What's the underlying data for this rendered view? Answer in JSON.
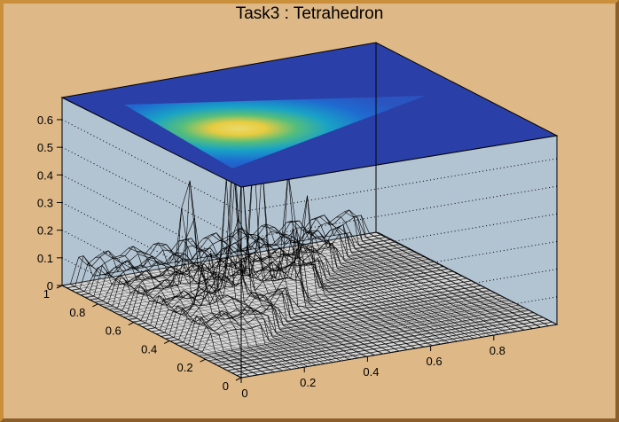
{
  "canvas": {
    "background": "#DEB887",
    "frame_light": "#C98F3A",
    "frame_dark": "#8B5E2A"
  },
  "chart_data": {
    "type": "surface3d",
    "subtype": "lego-mesh (SURF) with color-map projection (COLZ) on top plane",
    "title": "Task3 : Tetrahedron",
    "xlabel": "",
    "ylabel": "",
    "zlabel": "",
    "xlim": [
      0,
      1
    ],
    "ylim": [
      0,
      1
    ],
    "zlim": [
      0,
      0.68
    ],
    "x_ticks": [
      "0",
      "0.2",
      "0.4",
      "0.6",
      "0.8"
    ],
    "y_ticks": [
      "0",
      "0.2",
      "0.4",
      "0.6",
      "0.8",
      "1"
    ],
    "z_ticks": [
      "0",
      "0.1",
      "0.2",
      "0.3",
      "0.4",
      "0.5",
      "0.6"
    ],
    "grid": true,
    "colors": {
      "back_panels": "#B2C3D1",
      "top_plane": "#2A3FA8",
      "colormap": [
        "#2A3FA8",
        "#1E6CD2",
        "#18A7C8",
        "#56C47A",
        "#F2D33A",
        "#F4E36A"
      ]
    },
    "description_shape": "triangular support (tetrahedron projection), peaks concentrated near center",
    "peak_samples": [
      {
        "x": 0.3,
        "y": 0.55,
        "z": 0.63
      },
      {
        "x": 0.38,
        "y": 0.58,
        "z": 0.6
      },
      {
        "x": 0.25,
        "y": 0.5,
        "z": 0.58
      },
      {
        "x": 0.45,
        "y": 0.52,
        "z": 0.42
      },
      {
        "x": 0.2,
        "y": 0.65,
        "z": 0.45
      },
      {
        "x": 0.55,
        "y": 0.6,
        "z": 0.3
      },
      {
        "x": 0.15,
        "y": 0.45,
        "z": 0.22
      }
    ]
  }
}
